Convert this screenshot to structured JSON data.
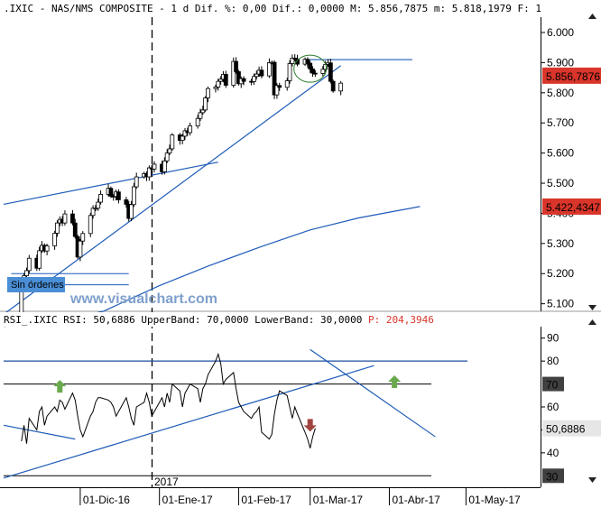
{
  "header": {
    "price_line": ".IXIC - NAS/NMS COMPOSITE -  1 d Dif. %: 0,00 Dif.: 0,0000 M: 5.856,7875 m: 5.818,1979 F: 1",
    "rsi_line": {
      "main": "RSI_.IXIC RSI: 50,6886 UpperBand: 70,0000 LowerBand: 30,0000 ",
      "extra": "P: 204,3946"
    }
  },
  "labels": {
    "year_marker": "2017",
    "order_box": "Sin órdenes",
    "watermark": "www.visualchart.com",
    "price_tag_last": "5.856,7876",
    "price_tag_ma": "5.422,4347",
    "rsi_tag": "50,6886",
    "rsi_tag_70": "70",
    "rsi_tag_30": "30"
  },
  "colors": {
    "up_arrow": "#6aaa4e",
    "down_arrow": "#a0443f",
    "trendline": "#1f5cb8",
    "price_tag": "#d9352a",
    "band_line": "#1f4fa0",
    "ellipse": "#2a7a2a",
    "order_box": "#4a8ed6"
  },
  "chart_data": [
    {
      "type": "candlestick",
      "title": ".IXIC - NAS/NMS COMPOSITE",
      "yticks": [
        "6.000",
        "5.900",
        "5.800",
        "5.700",
        "5.600",
        "5.500",
        "5.400",
        "5.300",
        "5.200",
        "5.100"
      ],
      "ytick_values": [
        6000,
        5900,
        5800,
        5700,
        5600,
        5500,
        5400,
        5300,
        5200,
        5100
      ],
      "ylim": [
        5075,
        6030
      ],
      "xticks": [
        "01-Dic-16",
        "01-Ene-17",
        "01-Feb-17",
        "01-Mar-17",
        "01-Abr-17",
        "01-May-17"
      ],
      "bar_start": "2016-11-04",
      "closes": [
        5050,
        5046,
        5167,
        5193,
        5210,
        5251,
        5218,
        5276,
        5294,
        5275,
        5292,
        5334,
        5368,
        5380,
        5368,
        5398,
        5368,
        5323,
        5255,
        5308,
        5333,
        5393,
        5417,
        5417,
        5437,
        5463,
        5483,
        5457,
        5456,
        5471,
        5445,
        5430,
        5383,
        5429,
        5488,
        5521,
        5532,
        5521,
        5551,
        5547,
        5563,
        5538,
        5574,
        5600,
        5614,
        5660,
        5642,
        5656,
        5674,
        5668,
        5690,
        5715,
        5734,
        5743,
        5783,
        5814,
        5819,
        5838,
        5845,
        5861,
        5825,
        5904,
        5870,
        5830,
        5847,
        5838,
        5837,
        5854,
        5862,
        5875,
        5856,
        5900,
        5901,
        5793,
        5824,
        5818,
        5840,
        5897,
        5915,
        5912,
        5895,
        5911,
        5898,
        5879,
        5865,
        5864,
        5878,
        5894,
        5899,
        5838,
        5806,
        5832
      ],
      "ma": [
        {
          "date": "2016-11-01",
          "value": 5025
        },
        {
          "date": "2016-11-20",
          "value": 5035
        },
        {
          "date": "2016-12-10",
          "value": 5075
        },
        {
          "date": "2017-01-01",
          "value": 5160
        },
        {
          "date": "2017-01-20",
          "value": 5225
        },
        {
          "date": "2017-02-10",
          "value": 5290
        },
        {
          "date": "2017-03-01",
          "value": 5345
        },
        {
          "date": "2017-03-20",
          "value": 5385
        },
        {
          "date": "2017-04-13",
          "value": 5422.4347
        }
      ],
      "last": 5856.7876,
      "ma_last": 5422.4347,
      "ranges": [
        {
          "from": "2016-11-04",
          "to": "2016-12-20",
          "value": 5200
        },
        {
          "from": "2016-11-04",
          "to": "2016-12-20",
          "value": 5163
        }
      ],
      "trendlines": [
        {
          "from": {
            "date": "2016-11-01",
            "value": 5430
          },
          "to": {
            "date": "2017-01-24",
            "value": 5570
          }
        },
        {
          "from": {
            "date": "2016-11-01",
            "value": 5065
          },
          "to": {
            "date": "2017-03-13",
            "value": 5890
          }
        },
        {
          "from": {
            "date": "2017-02-27",
            "value": 5910
          },
          "to": {
            "date": "2017-04-10",
            "value": 5910
          }
        }
      ]
    },
    {
      "type": "line",
      "title": "RSI_.IXIC",
      "ylim": [
        25,
        95
      ],
      "yticks": [
        "90",
        "80",
        "70",
        "60",
        "50",
        "40",
        "30"
      ],
      "ytick_values": [
        90,
        80,
        70,
        60,
        50,
        40,
        30
      ],
      "upper_band": 70,
      "lower_band": 30,
      "extra_band": 80,
      "values": [
        45,
        52,
        44,
        55,
        50,
        58,
        60,
        52,
        56,
        60,
        58,
        63,
        62,
        59,
        66,
        63,
        56,
        50,
        47,
        56,
        58,
        62,
        64,
        64,
        63,
        62,
        60,
        56,
        58,
        64,
        60,
        55,
        52,
        60,
        62,
        66,
        62,
        56,
        58,
        64,
        60,
        66,
        62,
        70,
        67,
        60,
        66,
        68,
        70,
        68,
        62,
        68,
        70,
        74,
        80,
        83,
        79,
        70,
        72,
        75,
        68,
        62,
        60,
        58,
        55,
        57,
        58,
        60,
        49,
        46,
        48,
        57,
        63,
        67,
        65,
        60,
        55,
        60,
        57,
        49,
        46,
        42,
        47,
        50.6886
      ],
      "last": 50.6886,
      "trendlines": [
        {
          "from": {
            "date": "2016-11-01",
            "value": 52
          },
          "to": {
            "date": "2016-11-29",
            "value": 46
          }
        },
        {
          "from": {
            "date": "2016-11-01",
            "value": 29
          },
          "to": {
            "date": "2017-03-26",
            "value": 78
          }
        },
        {
          "from": {
            "date": "2017-03-01",
            "value": 85
          },
          "to": {
            "date": "2017-04-19",
            "value": 47
          }
        }
      ],
      "arrows": [
        {
          "date": "2016-11-23",
          "value": 69,
          "direction": "up"
        },
        {
          "date": "2017-03-01",
          "value": 52,
          "direction": "down"
        },
        {
          "date": "2017-04-03",
          "value": 71,
          "direction": "up"
        }
      ]
    }
  ]
}
